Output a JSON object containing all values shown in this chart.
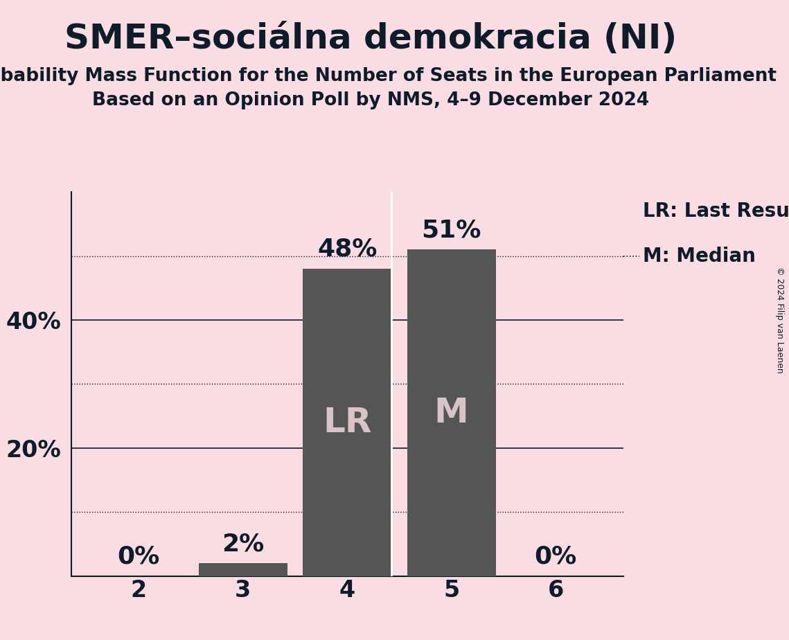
{
  "title": "SMER–sociálna demokracia (NI)",
  "subtitle1": "Probability Mass Function for the Number of Seats in the European Parliament",
  "subtitle2": "Based on an Opinion Poll by NMS, 4–9 December 2024",
  "copyright": "© 2024 Filip van Laenen",
  "seats": [
    2,
    3,
    4,
    5,
    6
  ],
  "probabilities": [
    0.0,
    0.02,
    0.48,
    0.51,
    0.0
  ],
  "bar_color": "#555555",
  "bg_color": "#f9dde2",
  "text_color": "#0d1b2a",
  "label_text_color": "#d9c5c8",
  "bar_labels": [
    "",
    "",
    "LR",
    "M",
    ""
  ],
  "pct_labels": [
    "0%",
    "2%",
    "48%",
    "51%",
    "0%"
  ],
  "ylim": [
    0,
    0.6
  ],
  "yticks": [
    0.0,
    0.1,
    0.2,
    0.3,
    0.4,
    0.5
  ],
  "ytick_labels": [
    "",
    "",
    "20%",
    "",
    "40%",
    ""
  ],
  "solid_gridlines": [
    0.2,
    0.4
  ],
  "dotted_gridlines": [
    0.1,
    0.3,
    0.5
  ],
  "legend_lr_text": "LR: Last Result",
  "legend_m_text": "M: Median",
  "title_fontsize": 36,
  "subtitle_fontsize": 19,
  "tick_fontsize": 24,
  "pct_fontsize": 26,
  "bar_label_fontsize": 36,
  "legend_fontsize": 20,
  "copyright_fontsize": 9
}
